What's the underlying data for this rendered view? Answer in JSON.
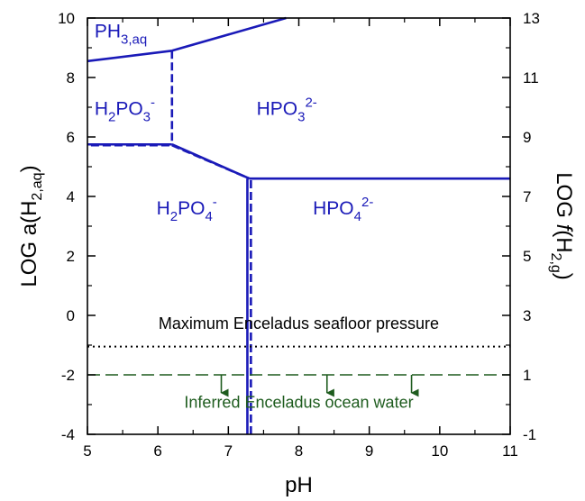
{
  "chart_data": {
    "type": "line",
    "title": "",
    "xlabel": "pH",
    "ylabel": {
      "main": "LOG a(H",
      "sub": "2,aq",
      "close": ")"
    },
    "y2label": {
      "main": "LOG ",
      "italic": "f",
      "open": "(H",
      "sub": "2,g",
      "close": ")"
    },
    "xlim": [
      5,
      11
    ],
    "ylim": [
      -4,
      10
    ],
    "y2lim": [
      -1,
      13
    ],
    "xticks": [
      5,
      6,
      7,
      8,
      9,
      10,
      11
    ],
    "yticks": [
      -4,
      -2,
      0,
      2,
      4,
      6,
      8,
      10
    ],
    "y2ticks": [
      -1,
      1,
      3,
      5,
      7,
      9,
      11,
      13
    ],
    "y2_offset": 3,
    "grid": false,
    "colors": {
      "boundary": "#1a1ab8",
      "pressure": "#000000",
      "ocean": "#1e5c1e"
    },
    "boundaries_solid": [
      {
        "x": [
          5,
          6.2
        ],
        "y": [
          8.55,
          8.9
        ]
      },
      {
        "x": [
          6.2,
          7.82
        ],
        "y": [
          8.9,
          10
        ]
      },
      {
        "x": [
          5,
          6.2
        ],
        "y": [
          5.75,
          5.75
        ]
      },
      {
        "x": [
          6.2,
          7.3
        ],
        "y": [
          5.75,
          4.6
        ]
      },
      {
        "x": [
          7.3,
          11
        ],
        "y": [
          4.6,
          4.6
        ]
      },
      {
        "x": [
          7.27,
          7.27
        ],
        "y": [
          -4,
          4.6
        ]
      }
    ],
    "boundaries_dashed": [
      {
        "x": [
          6.2,
          6.2
        ],
        "y": [
          8.9,
          5.75
        ]
      },
      {
        "x": [
          5.05,
          6.2
        ],
        "y": [
          5.72,
          5.72
        ]
      },
      {
        "x": [
          6.2,
          7.3
        ],
        "y": [
          5.72,
          4.6
        ]
      },
      {
        "x": [
          7.32,
          7.32
        ],
        "y": [
          -4,
          4.6
        ]
      }
    ],
    "species_labels": [
      {
        "parts": [
          "PH",
          "3,aq",
          ""
        ],
        "x": 5.1,
        "y": 9.35
      },
      {
        "parts": [
          "H",
          "2",
          "PO",
          "3",
          "-"
        ],
        "x": 5.1,
        "y": 6.75
      },
      {
        "parts": [
          "HPO",
          "3",
          "2-"
        ],
        "x": 7.4,
        "y": 6.75
      },
      {
        "parts": [
          "H",
          "2",
          "PO",
          "4",
          "-"
        ],
        "x": 5.98,
        "y": 3.4
      },
      {
        "parts": [
          "HPO",
          "4",
          "2-"
        ],
        "x": 8.2,
        "y": 3.4
      }
    ],
    "pressure_line": {
      "y": -1.05,
      "label": "Maximum Enceladus seafloor pressure",
      "label_x": 8.0,
      "label_y": -0.45
    },
    "ocean_line": {
      "y": -2,
      "label": "Inferred Enceladus ocean water",
      "label_x": 8.0,
      "label_y": -3.1,
      "arrows_x": [
        6.9,
        8.4,
        9.6
      ]
    }
  }
}
